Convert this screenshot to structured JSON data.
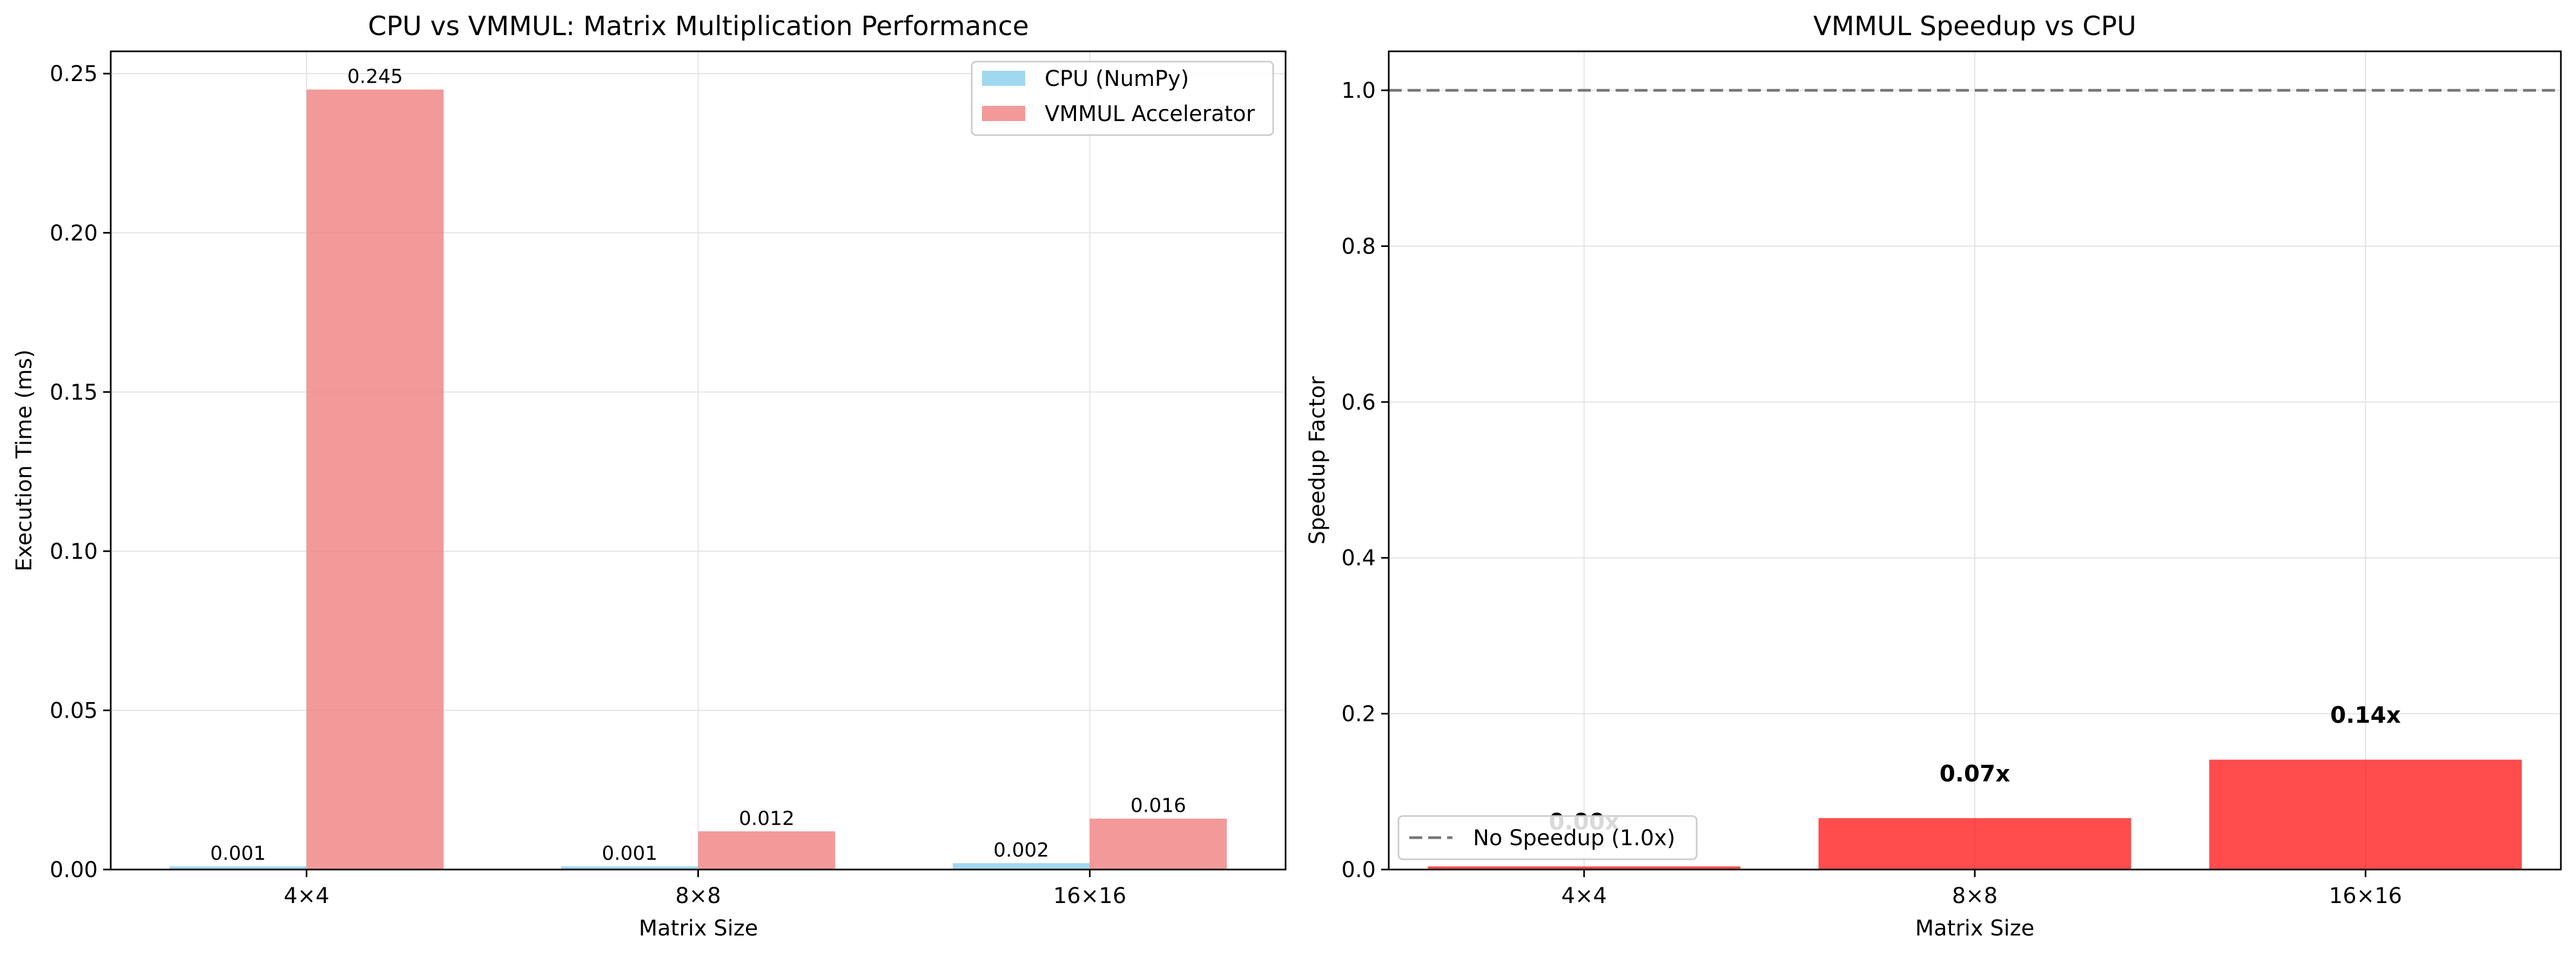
{
  "colors": {
    "cpu": "#87ceeb",
    "vmmul": "#f08080",
    "speedup": "#ff0000",
    "reference_line": "#777777",
    "grid": "#e3e3e3"
  },
  "chart_data": [
    {
      "type": "bar",
      "title": "CPU vs VMMUL: Matrix Multiplication Performance",
      "xlabel": "Matrix Size",
      "ylabel": "Execution Time (ms)",
      "categories": [
        "4×4",
        "8×8",
        "16×16"
      ],
      "ylim": [
        0,
        0.257
      ],
      "yticks": [
        0,
        0.05,
        0.1,
        0.15,
        0.2,
        0.25
      ],
      "ytick_labels": [
        "0.00",
        "0.05",
        "0.10",
        "0.15",
        "0.20",
        "0.25"
      ],
      "grid": true,
      "legend_position": "top-right",
      "series": [
        {
          "name": "CPU (NumPy)",
          "values": [
            0.001,
            0.001,
            0.002
          ],
          "labels": [
            "0.001",
            "0.001",
            "0.002"
          ]
        },
        {
          "name": "VMMUL Accelerator",
          "values": [
            0.245,
            0.012,
            0.016
          ],
          "labels": [
            "0.245",
            "0.012",
            "0.016"
          ]
        }
      ]
    },
    {
      "type": "bar",
      "title": "VMMUL Speedup vs CPU",
      "xlabel": "Matrix Size",
      "ylabel": "Speedup Factor",
      "categories": [
        "4×4",
        "8×8",
        "16×16"
      ],
      "ylim": [
        0,
        1.05
      ],
      "yticks": [
        0,
        0.2,
        0.4,
        0.6,
        0.8,
        1.0
      ],
      "ytick_labels": [
        "0.0",
        "0.2",
        "0.4",
        "0.6",
        "0.8",
        "1.0"
      ],
      "grid": true,
      "legend_position": "bottom-left",
      "values": [
        0.004,
        0.066,
        0.141
      ],
      "labels": [
        "0.00x",
        "0.07x",
        "0.14x"
      ],
      "reference_line": {
        "value": 1.0,
        "label": "No Speedup (1.0x)"
      }
    }
  ]
}
